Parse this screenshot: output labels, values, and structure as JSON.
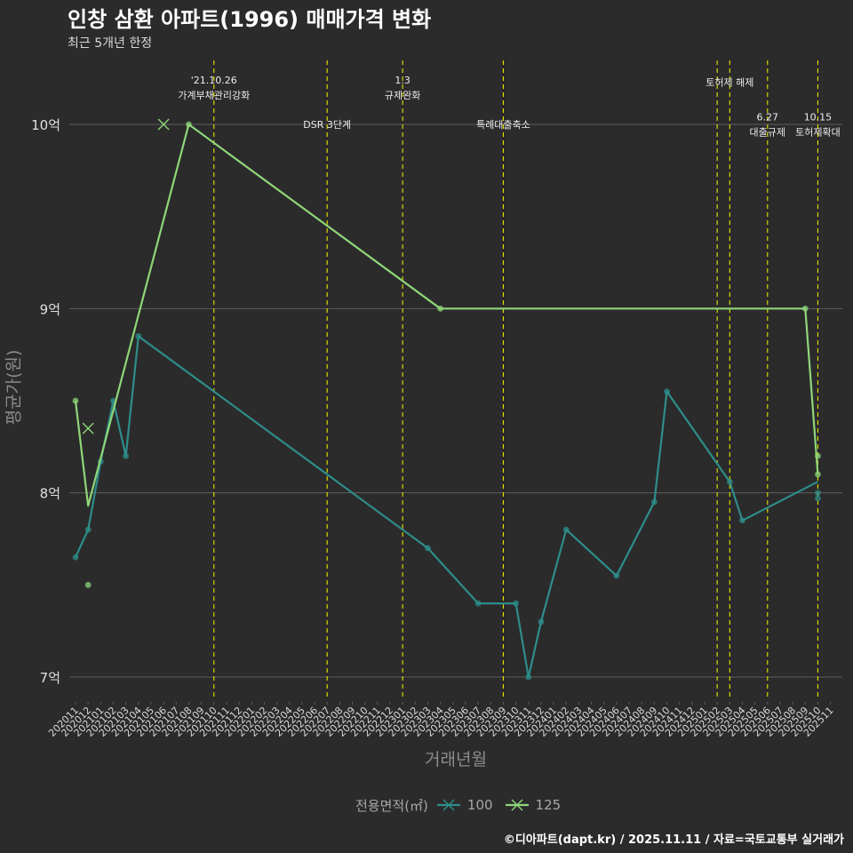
{
  "chart_data": {
    "type": "line",
    "title": "인창 삼환 아파트(1996) 매매가격 변화",
    "subtitle": "최근 5개년 한정",
    "xlabel": "거래년월",
    "ylabel": "평균가(원)",
    "caption": "©디아파트(dapt.kr) / 2025.11.11 / 자료=국토교통부 실거래가",
    "legend_title": "전용면적(㎡)",
    "legend_position": "bottom",
    "ylim_eok": [
      6.87,
      10.25
    ],
    "y_ticks": [
      {
        "value": 7,
        "label": "7억"
      },
      {
        "value": 8,
        "label": "8억"
      },
      {
        "value": 9,
        "label": "9억"
      },
      {
        "value": 10,
        "label": "10억"
      }
    ],
    "x_categories": [
      "202011",
      "202012",
      "202101",
      "202102",
      "202103",
      "202104",
      "202105",
      "202106",
      "202107",
      "202108",
      "202109",
      "202110",
      "202111",
      "202112",
      "202201",
      "202202",
      "202203",
      "202204",
      "202205",
      "202206",
      "202207",
      "202208",
      "202209",
      "202210",
      "202211",
      "202212",
      "202301",
      "202302",
      "202303",
      "202304",
      "202305",
      "202306",
      "202307",
      "202308",
      "202309",
      "202310",
      "202311",
      "202312",
      "202401",
      "202402",
      "202403",
      "202404",
      "202405",
      "202406",
      "202407",
      "202408",
      "202409",
      "202410",
      "202411",
      "202412",
      "202501",
      "202502",
      "202503",
      "202504",
      "202505",
      "202506",
      "202507",
      "202508",
      "202509",
      "202510",
      "202511"
    ],
    "series": [
      {
        "name": "100",
        "color": "#2e8d8a",
        "line": [
          {
            "x": "202011",
            "y": 7.65
          },
          {
            "x": "202012",
            "y": 7.8
          },
          {
            "x": "202101",
            "y": 8.17
          },
          {
            "x": "202102",
            "y": 8.5
          },
          {
            "x": "202103",
            "y": 8.2
          },
          {
            "x": "202104",
            "y": 8.85
          },
          {
            "x": "202303",
            "y": 7.7
          },
          {
            "x": "202307",
            "y": 7.4
          },
          {
            "x": "202310",
            "y": 7.4
          },
          {
            "x": "202311",
            "y": 7.0
          },
          {
            "x": "202312",
            "y": 7.3
          },
          {
            "x": "202402",
            "y": 7.8
          },
          {
            "x": "202406",
            "y": 7.55
          },
          {
            "x": "202409",
            "y": 7.95
          },
          {
            "x": "202410",
            "y": 8.55
          },
          {
            "x": "202503",
            "y": 8.06
          },
          {
            "x": "202504",
            "y": 7.85
          },
          {
            "x": "202510",
            "y": 8.06
          }
        ],
        "points": [
          {
            "x": "202011",
            "y": 7.65
          },
          {
            "x": "202012",
            "y": 7.8
          },
          {
            "x": "202101",
            "y": 8.17
          },
          {
            "x": "202102",
            "y": 8.5
          },
          {
            "x": "202103",
            "y": 8.2
          },
          {
            "x": "202104",
            "y": 8.85
          },
          {
            "x": "202303",
            "y": 7.7
          },
          {
            "x": "202307",
            "y": 7.4
          },
          {
            "x": "202310",
            "y": 7.4
          },
          {
            "x": "202311",
            "y": 7.0
          },
          {
            "x": "202312",
            "y": 7.3
          },
          {
            "x": "202402",
            "y": 7.8
          },
          {
            "x": "202406",
            "y": 7.55
          },
          {
            "x": "202409",
            "y": 7.95
          },
          {
            "x": "202410",
            "y": 8.55
          },
          {
            "x": "202503",
            "y": 8.06
          },
          {
            "x": "202504",
            "y": 7.85
          },
          {
            "x": "202510",
            "y": 8.0
          },
          {
            "x": "202510",
            "y": 7.97
          }
        ]
      },
      {
        "name": "125",
        "color": "#8fd678",
        "line": [
          {
            "x": "202011",
            "y": 8.5
          },
          {
            "x": "202012",
            "y": 7.93
          },
          {
            "x": "202108",
            "y": 10.0
          },
          {
            "x": "202304",
            "y": 9.0
          },
          {
            "x": "202509",
            "y": 9.0
          },
          {
            "x": "202510",
            "y": 8.1
          }
        ],
        "points": [
          {
            "x": "202011",
            "y": 8.5
          },
          {
            "x": "202012",
            "y": 7.5
          },
          {
            "x": "202108",
            "y": 10.0
          },
          {
            "x": "202304",
            "y": 9.0
          },
          {
            "x": "202509",
            "y": 9.0
          },
          {
            "x": "202510",
            "y": 8.2
          },
          {
            "x": "202510",
            "y": 8.1
          }
        ],
        "cancelled_points": [
          {
            "x": "202012",
            "y": 8.35
          },
          {
            "x": "202106",
            "y": 10.0
          }
        ]
      }
    ],
    "events": [
      {
        "x": "202110",
        "lines": [
          "'21.10.26",
          "가계부채관리강화"
        ],
        "label_y": 10.2
      },
      {
        "x": "202207",
        "lines": [
          "DSR 3단계"
        ],
        "label_y": 10.0
      },
      {
        "x": "202301",
        "lines": [
          "1.3",
          "규제완화"
        ],
        "label_y": 10.2
      },
      {
        "x": "202309",
        "lines": [
          "특례대출축소"
        ],
        "label_y": 10.0
      },
      {
        "x": "202502",
        "lines": [],
        "label_y": null
      },
      {
        "x": "202503",
        "lines": [
          "토허제 해제"
        ],
        "label_y": 10.23
      },
      {
        "x": "202506",
        "lines": [
          "6.27",
          "대출규제"
        ],
        "label_y": 10.0
      },
      {
        "x": "202510",
        "lines": [
          "10.15",
          "토허제확대"
        ],
        "label_y": 10.0
      }
    ],
    "event_line_color": "#e6e600"
  }
}
